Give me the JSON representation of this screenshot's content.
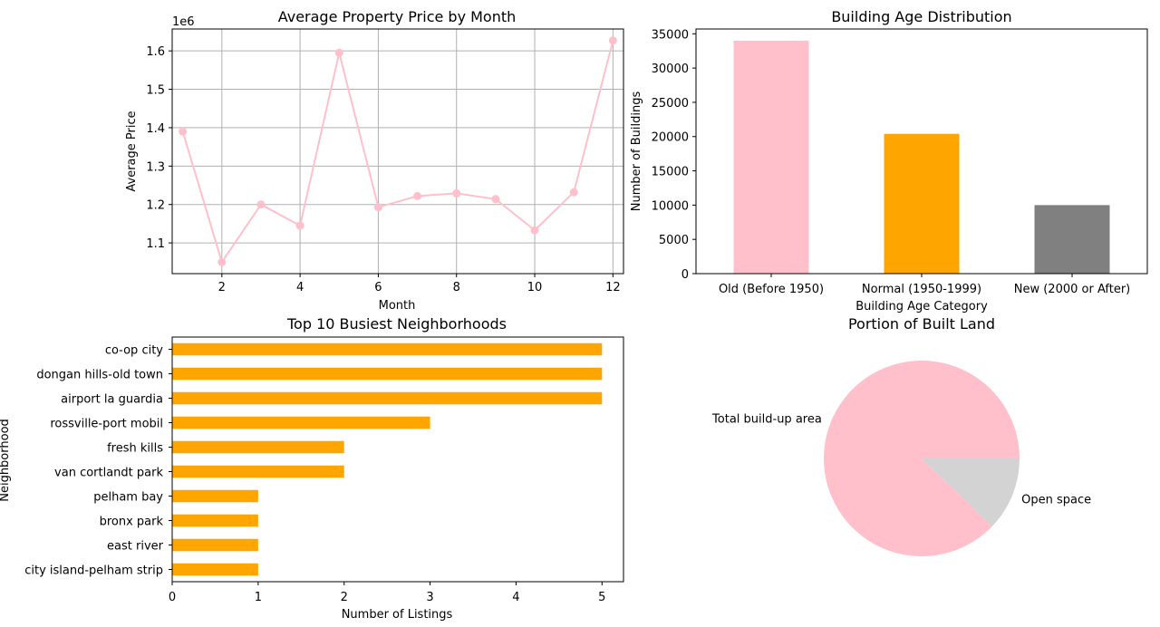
{
  "chart_data": [
    {
      "type": "line",
      "title": "Average Property Price by Month",
      "xlabel": "Month",
      "ylabel": "Average Price",
      "y_offset_label": "1e6",
      "x": [
        1,
        2,
        3,
        4,
        5,
        6,
        7,
        8,
        9,
        10,
        11,
        12
      ],
      "values": [
        1390000,
        1050000,
        1200000,
        1145000,
        1595000,
        1193000,
        1222000,
        1229000,
        1214000,
        1133000,
        1232000,
        1627000
      ],
      "xlim": [
        0.73,
        12.27
      ],
      "ylim": [
        1020000,
        1657000
      ],
      "xticks": [
        2,
        4,
        6,
        8,
        10,
        12
      ],
      "yticks": [
        1100000,
        1200000,
        1300000,
        1400000,
        1500000,
        1600000
      ],
      "ytick_labels": [
        "1.1",
        "1.2",
        "1.3",
        "1.4",
        "1.5",
        "1.6"
      ],
      "grid": true,
      "color": "#ffc0cb"
    },
    {
      "type": "bar",
      "title": "Building Age Distribution",
      "xlabel": "Building Age Category",
      "ylabel": "Number of Buildings",
      "categories": [
        "Old (Before 1950)",
        "Normal (1950-1999)",
        "New (2000 or After)"
      ],
      "values": [
        34000,
        20400,
        10000
      ],
      "colors": [
        "#ffc0cb",
        "#ffa500",
        "#808080"
      ],
      "ylim": [
        0,
        35700
      ],
      "yticks": [
        0,
        5000,
        10000,
        15000,
        20000,
        25000,
        30000,
        35000
      ],
      "grid": false
    },
    {
      "type": "bar",
      "orientation": "horizontal",
      "title": "Top 10 Busiest Neighborhoods",
      "xlabel": "Number of Listings",
      "ylabel": "Neighborhood",
      "categories": [
        "co-op city",
        "dongan hills-old town",
        "airport la guardia",
        "rossville-port mobil",
        "fresh kills",
        "van cortlandt park",
        "pelham bay",
        "bronx park",
        "east river",
        "city island-pelham strip"
      ],
      "values": [
        5,
        5,
        5,
        3,
        2,
        2,
        1,
        1,
        1,
        1
      ],
      "xlim": [
        0,
        5.25
      ],
      "xticks": [
        0,
        1,
        2,
        3,
        4,
        5
      ],
      "color": "#ffa500",
      "grid": false
    },
    {
      "type": "pie",
      "title": "Portion of Built Land",
      "labels": [
        "Total build-up area",
        "Open space"
      ],
      "values": [
        87.8,
        12.2
      ],
      "colors": [
        "#ffc0cb",
        "#d3d3d3"
      ]
    }
  ]
}
